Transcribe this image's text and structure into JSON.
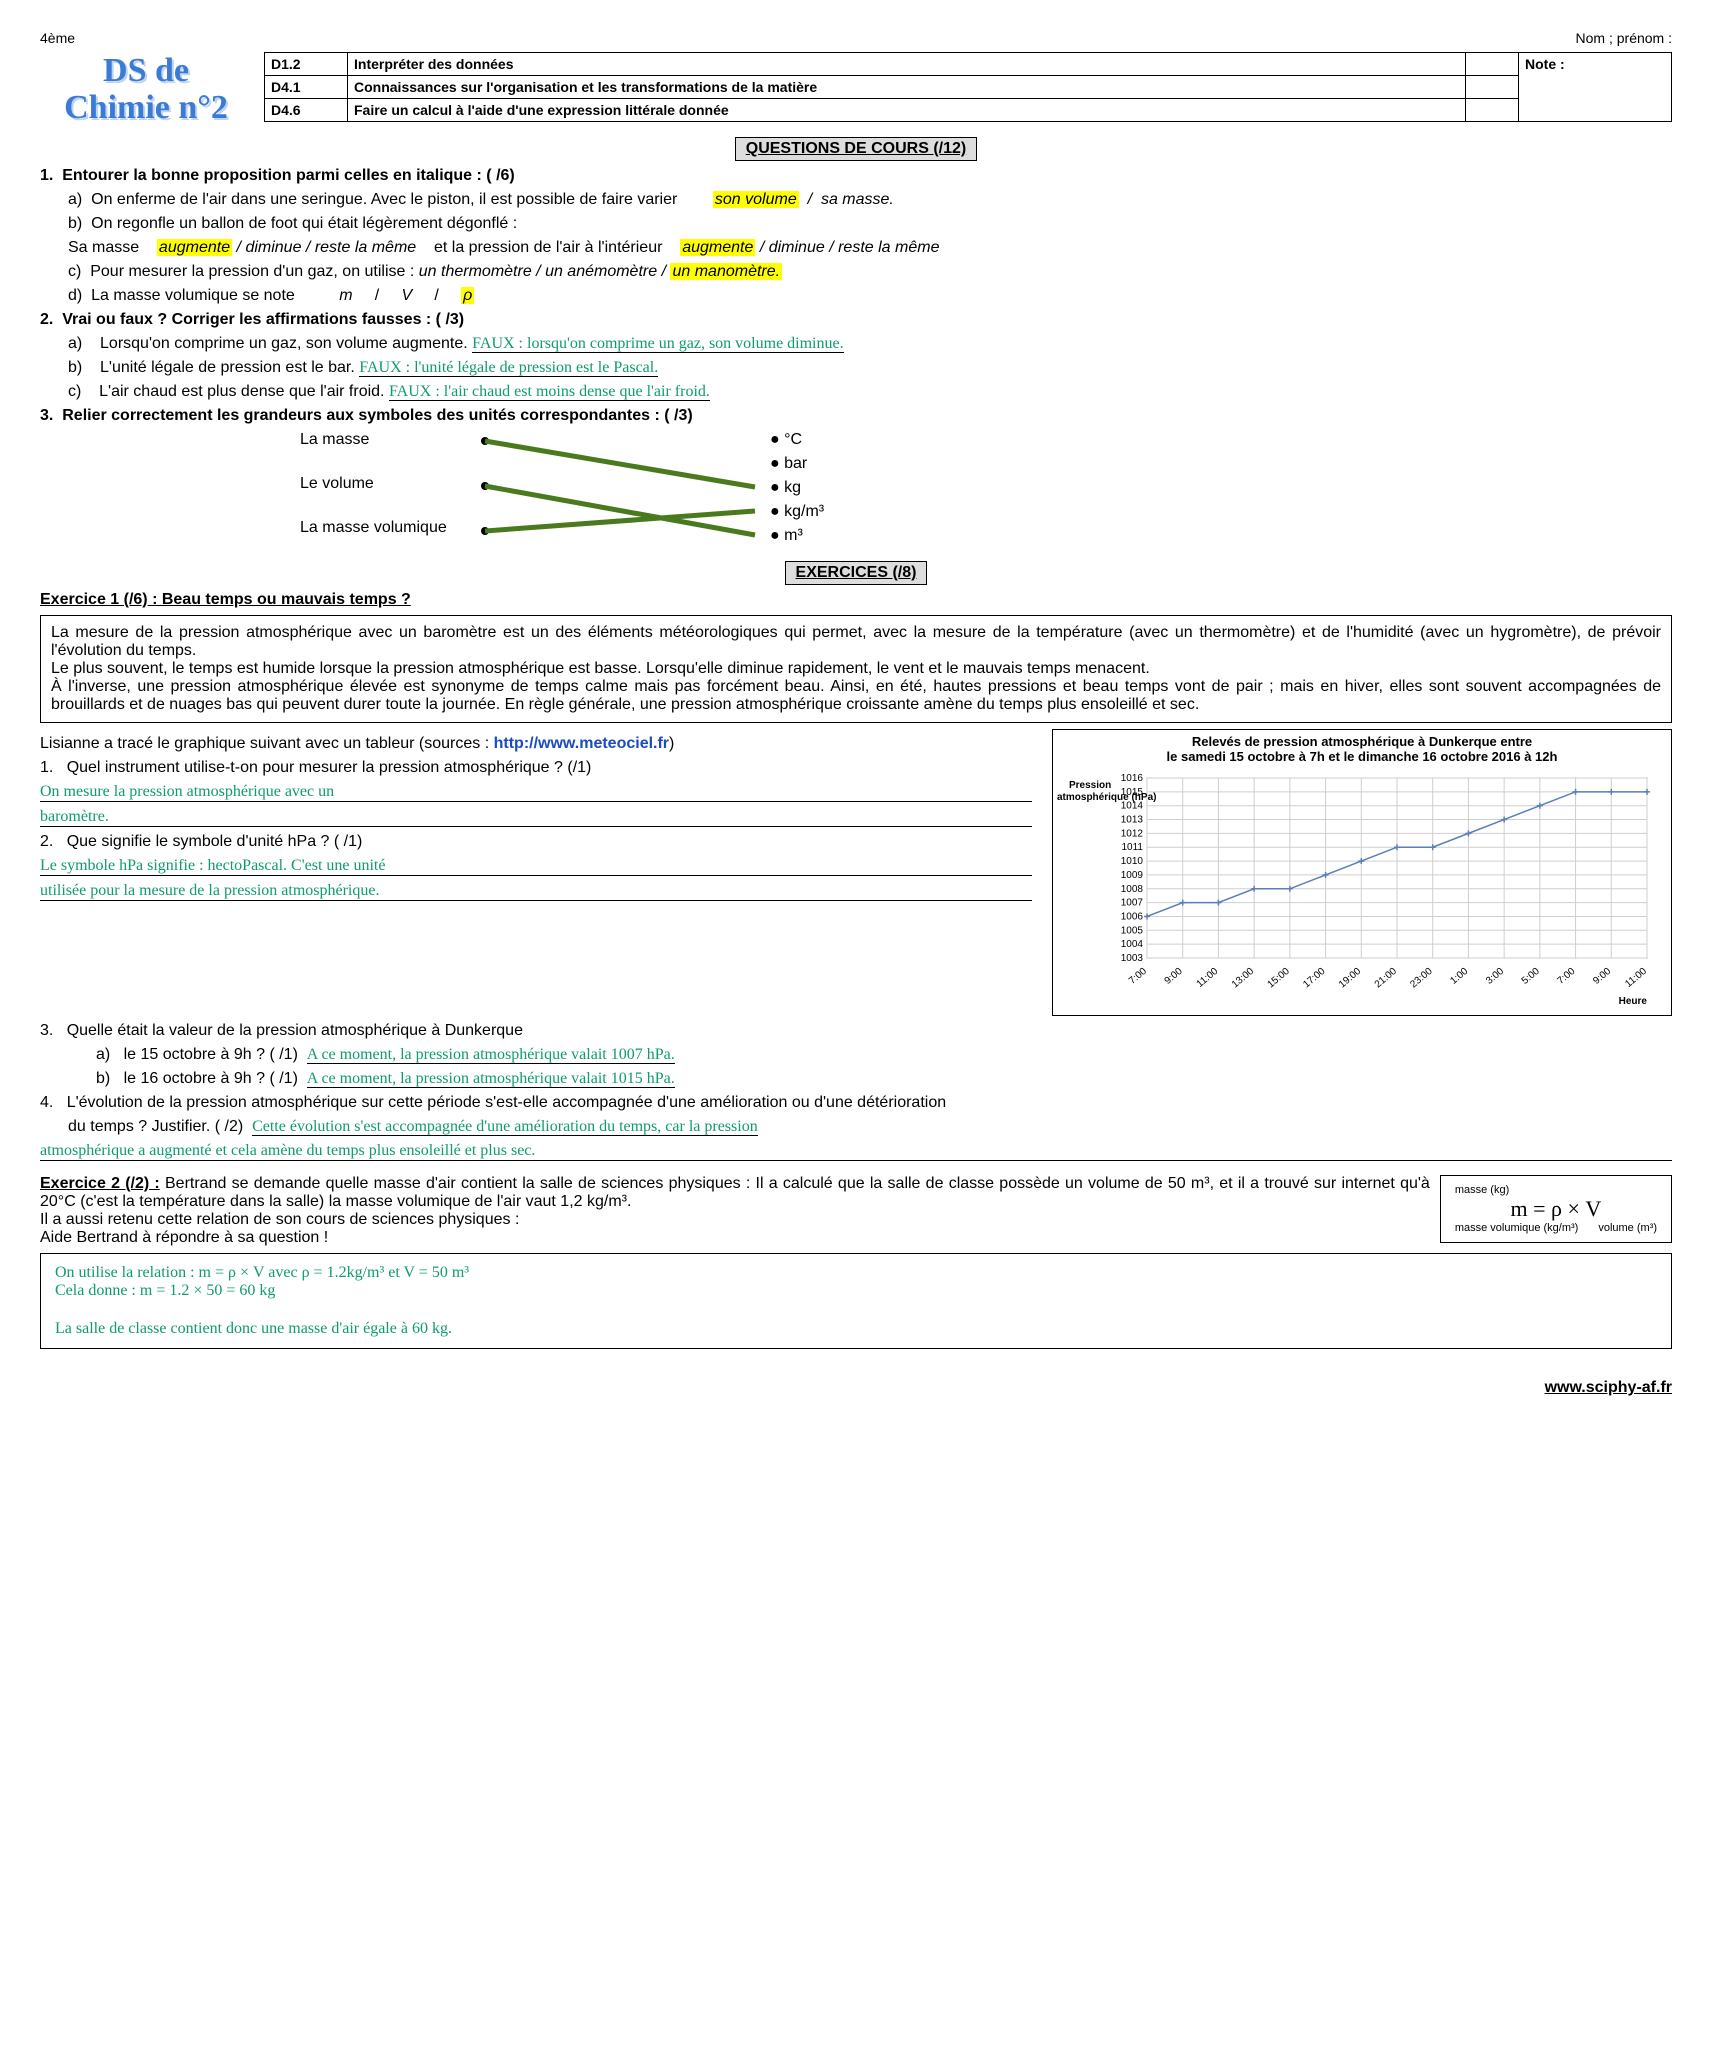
{
  "meta": {
    "grade": "4ème",
    "name_label": "Nom ; prénom :",
    "footer": "www.sciphy-af.fr"
  },
  "title": {
    "line1": "DS de",
    "line2": "Chimie n°2"
  },
  "competences": {
    "note_label": "Note :",
    "rows": [
      {
        "code": "D1.2",
        "desc": "Interpréter des données"
      },
      {
        "code": "D4.1",
        "desc": "Connaissances sur l'organisation et les transformations de la matière"
      },
      {
        "code": "D4.6",
        "desc": "Faire un calcul à l'aide d'une expression littérale donnée"
      }
    ]
  },
  "sections": {
    "cours": "QUESTIONS DE COURS (/12)",
    "exos": "EXERCICES (/8)"
  },
  "q1": {
    "stem": "Entourer la bonne proposition parmi celles en italique : ( /6)",
    "a_text": "On enferme de l'air dans une seringue. Avec le piston, il est possible de faire varier",
    "a_opt1": "son volume",
    "a_sep": "/",
    "a_opt2": "sa masse.",
    "b_text": "On regonfle un ballon de foot qui était légèrement dégonflé :",
    "b_line": "Sa masse",
    "b_o1": "augmente",
    "b_o2": "diminue",
    "b_o3": "reste la même",
    "b_mid": "et la pression de l'air à l'intérieur",
    "b_p1": "augmente",
    "b_p2": "diminue",
    "b_p3": "reste la même",
    "c_text": "Pour mesurer la pression d'un gaz, on utilise :",
    "c_o1": "un thermomètre",
    "c_o2": "un anémomètre",
    "c_o3": "un manomètre.",
    "d_text": "La masse volumique se note",
    "d_o1": "m",
    "d_o2": "V",
    "d_o3": "ρ"
  },
  "q2": {
    "stem": "Vrai ou faux ? Corriger les affirmations fausses : ( /3)",
    "a": "Lorsqu'on comprime un gaz, son volume augmente.",
    "a_ans": "FAUX : lorsqu'on comprime un gaz, son volume diminue.",
    "b": "L'unité légale de pression est le bar.",
    "b_ans": "FAUX : l'unité légale de pression est le Pascal.",
    "c": "L'air chaud est plus dense que l'air froid.",
    "c_ans": "FAUX : l'air chaud est moins dense que l'air froid."
  },
  "q3": {
    "stem": "Relier correctement les grandeurs aux symboles des unités correspondantes :   ( /3)",
    "left": [
      "La masse",
      "Le volume",
      "La masse volumique"
    ],
    "right": [
      "°C",
      "bar",
      "kg",
      "kg/m³",
      "m³"
    ],
    "lines": [
      {
        "from": 0,
        "to": 2,
        "color": "#4a7a1e"
      },
      {
        "from": 1,
        "to": 4,
        "color": "#4a7a1e"
      },
      {
        "from": 2,
        "to": 3,
        "color": "#4a7a1e"
      }
    ]
  },
  "ex1": {
    "title": "Exercice 1 (/6) : Beau temps ou mauvais temps ?",
    "para": "La mesure de la pression atmosphérique avec un baromètre est un des éléments météorologiques qui permet, avec la mesure de la température (avec un thermomètre) et de l'humidité (avec un hygromètre), de prévoir l'évolution du temps.\nLe plus souvent, le temps est humide lorsque la pression atmosphérique est basse. Lorsqu'elle diminue rapidement, le vent et le mauvais temps menacent.\nÀ l'inverse, une pression atmosphérique élevée est synonyme de temps calme mais pas forcément beau. Ainsi, en été, hautes pressions et beau temps vont de pair ; mais en hiver, elles sont souvent accompagnées de brouillards et de nuages bas qui peuvent durer toute la journée. En règle générale, une pression atmosphérique croissante amène du temps plus ensoleillé et sec.",
    "intro": "Lisianne a tracé le graphique suivant avec un tableur (sources : ",
    "src": "http://www.meteociel.fr",
    "intro_end": ")",
    "q1": "Quel instrument utilise-t-on pour mesurer la pression atmosphérique ? (/1)",
    "a1a": "On mesure la pression atmosphérique avec un",
    "a1b": "baromètre.",
    "q2": "Que signifie le symbole d'unité hPa ? ( /1)",
    "a2a": "Le symbole hPa signifie : hectoPascal. C'est une unité",
    "a2b": "utilisée pour la mesure de la pression atmosphérique.",
    "q3": "Quelle était la valeur de la pression atmosphérique à Dunkerque",
    "q3a": "le 15 octobre à 9h ? ( /1)",
    "a3a": "A ce moment, la pression atmosphérique valait 1007 hPa.",
    "q3b": "le 16 octobre à 9h ? ( /1)",
    "a3b": "A ce moment, la pression atmosphérique valait 1015 hPa.",
    "q4": "L'évolution de la pression atmosphérique sur cette période s'est-elle accompagnée d'une amélioration ou d'une détérioration",
    "q4b": "du temps ? Justifier. ( /2)",
    "a4a": "Cette évolution s'est accompagnée d'une amélioration du temps, car la pression",
    "a4b": "atmosphérique a augmenté et cela amène du temps plus ensoleillé et plus sec."
  },
  "chart": {
    "title": "Relevés de pression atmosphérique à Dunkerque entre\nle samedi 15 octobre à 7h et le dimanche 16 octobre 2016 à 12h",
    "ylabel": "Pression atmosphérique (hPa)",
    "xlabel": "Heure",
    "ymin": 1003,
    "ymax": 1016,
    "ytick": 1,
    "xticks": [
      "7:00",
      "9:00",
      "11:00",
      "13:00",
      "15:00",
      "17:00",
      "19:00",
      "21:00",
      "23:00",
      "1:00",
      "3:00",
      "5:00",
      "7:00",
      "9:00",
      "11:00"
    ],
    "values": [
      1006,
      1007,
      1007,
      1008,
      1008,
      1009,
      1010,
      1011,
      1011,
      1012,
      1013,
      1014,
      1015,
      1015,
      1015
    ],
    "line_color": "#5a7fb8",
    "grid_color": "#cfcfcf",
    "bg": "#ffffff",
    "font_size": 10
  },
  "ex2": {
    "title": "Exercice 2 (/2) :",
    "text": "Bertrand se demande quelle masse d'air contient la salle de sciences physiques : Il a calculé que la salle de classe possède un volume de 50 m³, et il a trouvé sur internet qu'à 20°C (c'est la température dans la salle) la masse volumique de l'air vaut 1,2 kg/m³.\nIl a aussi retenu cette relation de son cours de sciences physiques :\nAide Bertrand à répondre à sa question !",
    "formula": {
      "lhs": "m = ρ × V",
      "ann_m": "masse (kg)",
      "ann_rho": "masse volumique (kg/m³)",
      "ann_v": "volume (m³)"
    },
    "ans1": "On utilise la relation : m = ρ × V avec ρ = 1.2kg/m³ et V = 50 m³",
    "ans2": "Cela donne : m = 1.2 × 50 = 60 kg",
    "ans3": "La salle de classe contient donc une masse d'air égale à 60 kg."
  },
  "colors": {
    "answer": "#0f9b6e",
    "highlight": "#ffff00",
    "title": "#3b7bd6",
    "link": "#1a4cc0"
  }
}
